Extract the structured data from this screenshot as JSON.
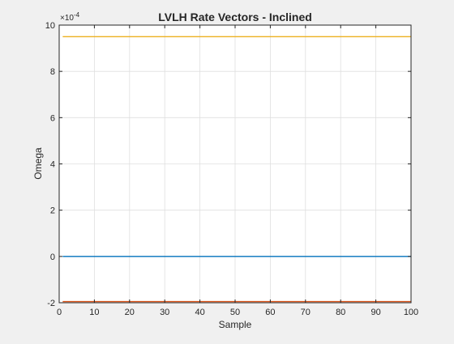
{
  "chart_data": {
    "type": "line",
    "title": "LVLH Rate Vectors - Inclined",
    "xlabel": "Sample",
    "ylabel": "Omega",
    "exponent_label": "×10",
    "exponent_power": "-4",
    "xlim": [
      0,
      100
    ],
    "ylim": [
      -2,
      10
    ],
    "xticks": [
      0,
      10,
      20,
      30,
      40,
      50,
      60,
      70,
      80,
      90,
      100
    ],
    "yticks": [
      -2,
      0,
      2,
      4,
      6,
      8,
      10
    ],
    "grid": true,
    "x": [
      1,
      100
    ],
    "series": [
      {
        "color": "#0072BD",
        "values": [
          0,
          0
        ]
      },
      {
        "color": "#D95319",
        "values": [
          -1.95,
          -1.95
        ]
      },
      {
        "color": "#EDB120",
        "values": [
          9.5,
          9.5
        ]
      }
    ]
  }
}
